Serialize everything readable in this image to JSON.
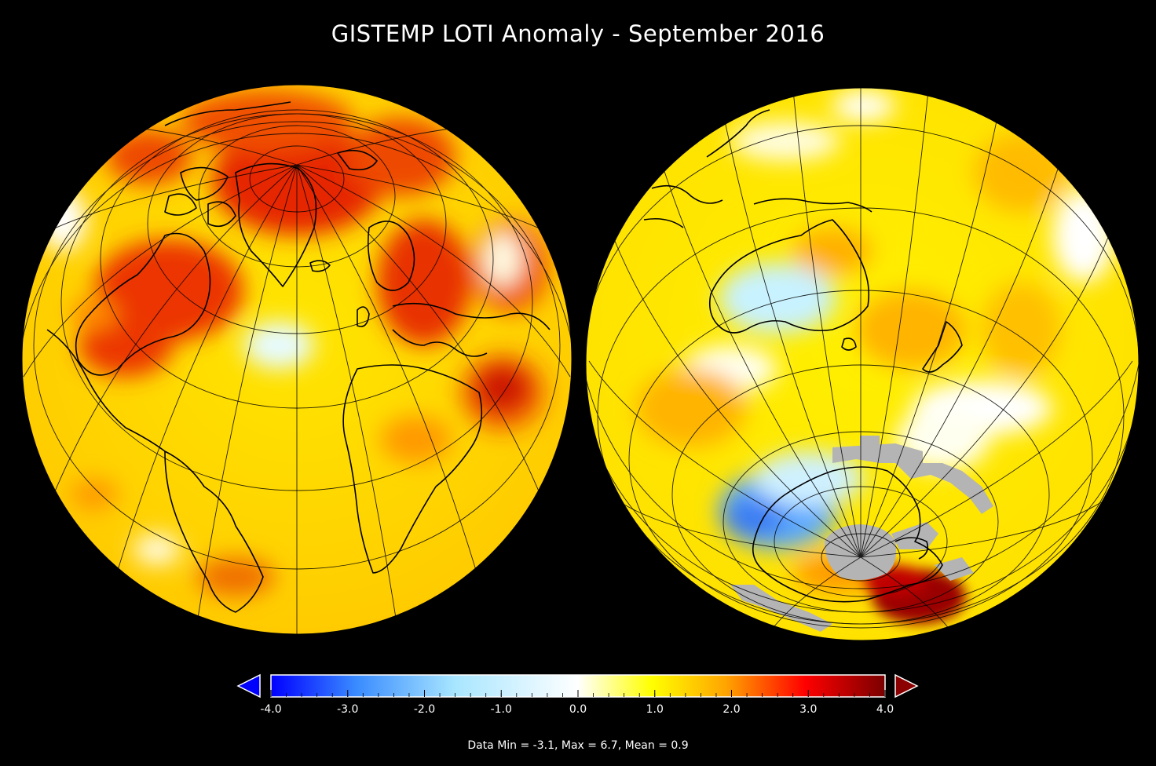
{
  "title": "GISTEMP LOTI Anomaly - September 2016",
  "colorbar": {
    "min": -4.0,
    "max": 4.0,
    "ticks": [
      "-4.0",
      "-3.0",
      "-2.0",
      "-1.0",
      "0.0",
      "1.0",
      "2.0",
      "3.0",
      "4.0"
    ],
    "tick_values": [
      -4,
      -3,
      -2,
      -1,
      0,
      1,
      2,
      3,
      4
    ],
    "colors": [
      "#0000ff",
      "#3a8cff",
      "#a8e6ff",
      "#ffffff",
      "#ffff00",
      "#ffa500",
      "#ff0000",
      "#7a0000"
    ],
    "under_color": "#0000ff",
    "over_color": "#8b0000"
  },
  "summary": "Data Min = -3.1, Max = 6.7, Mean = 0.9",
  "palette": {
    "background": "#000000",
    "no_data": "#b4b4b4"
  }
}
